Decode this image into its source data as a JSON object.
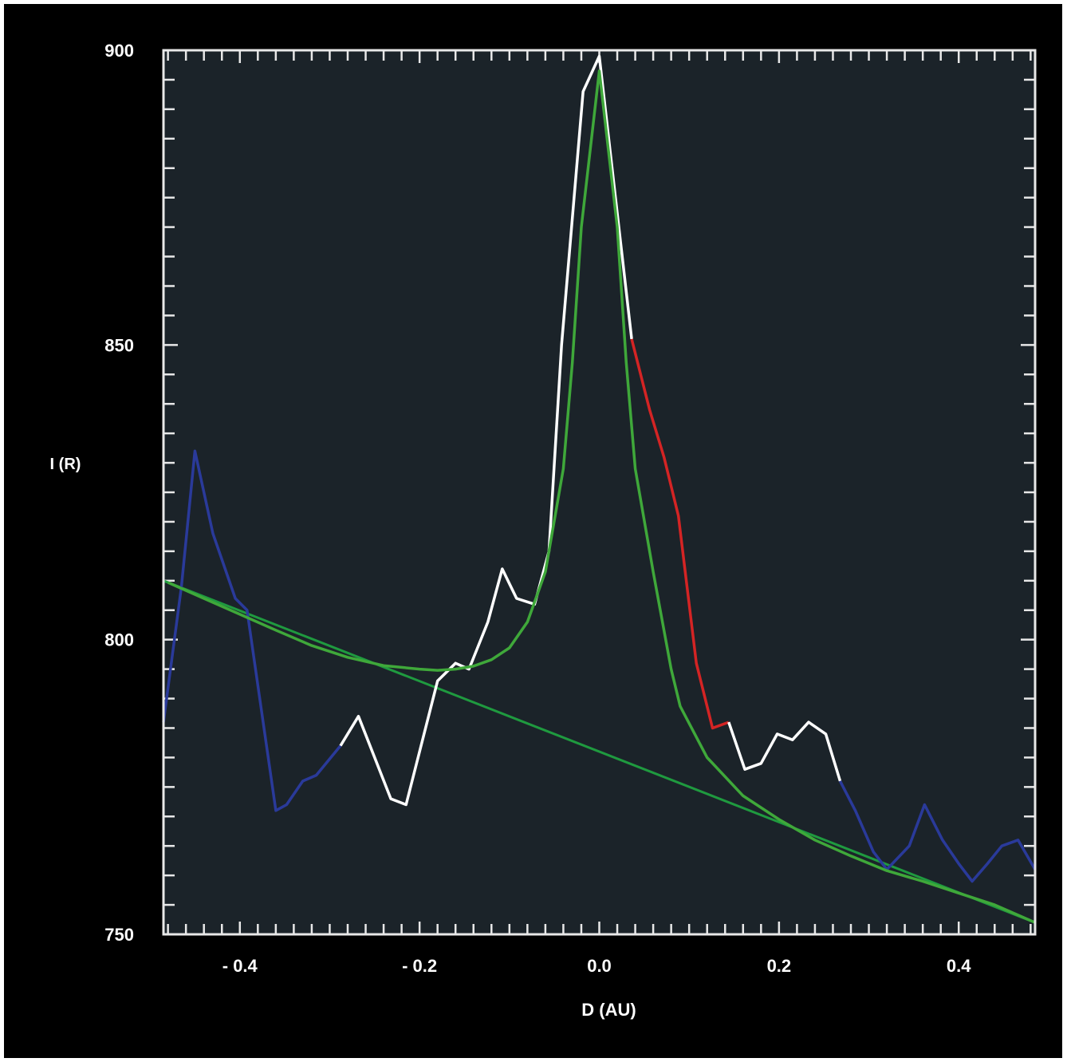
{
  "chart_data": {
    "type": "line",
    "title": "",
    "xlabel": "D (AU)",
    "ylabel": "I (R)",
    "xlim": [
      -0.485,
      0.485
    ],
    "ylim": [
      750,
      900
    ],
    "x_ticks": [
      -0.4,
      -0.2,
      0.0,
      0.2,
      0.4
    ],
    "x_tick_labels": [
      "- 0.4",
      "- 0.2",
      "0.0",
      "0.2",
      "0.4"
    ],
    "y_ticks": [
      750,
      800,
      850,
      900
    ],
    "y_tick_labels": [
      "750",
      "800",
      "850",
      "900"
    ],
    "grid": false,
    "colors": {
      "background": "#1b2329",
      "frame": "#000000",
      "axes": "#e8e8e8",
      "observed": "#ffffff",
      "excluded": "#2a3a9a",
      "excess": "#d42424",
      "fit": "#3fa83a",
      "baseline": "#1f9a3f"
    },
    "observed": {
      "x": [
        -0.485,
        -0.465,
        -0.45,
        -0.43,
        -0.405,
        -0.392,
        -0.36,
        -0.348,
        -0.33,
        -0.315,
        -0.288,
        -0.268,
        -0.232,
        -0.215,
        -0.18,
        -0.16,
        -0.145,
        -0.124,
        -0.108,
        -0.092,
        -0.072,
        -0.056,
        -0.042,
        -0.018,
        0.0,
        0.018,
        0.036,
        0.056,
        0.072,
        0.088,
        0.108,
        0.126,
        0.144,
        0.162,
        0.18,
        0.198,
        0.215,
        0.233,
        0.252,
        0.268,
        0.285,
        0.305,
        0.32,
        0.345,
        0.362,
        0.382,
        0.4,
        0.415,
        0.432,
        0.448,
        0.466,
        0.485
      ],
      "y": [
        786,
        809,
        832,
        818,
        807,
        805,
        771,
        772,
        776,
        777,
        782,
        787,
        773,
        772,
        793,
        796,
        795,
        803,
        812,
        807,
        806,
        815,
        850,
        893,
        899,
        875,
        851,
        839,
        831,
        821,
        796,
        785,
        786,
        778,
        779,
        784,
        783,
        786,
        784,
        776,
        771,
        764,
        761,
        765,
        772,
        766,
        762,
        759,
        762,
        765,
        766,
        761
      ],
      "segments": [
        {
          "from": -0.485,
          "to": -0.465,
          "status": "excluded"
        },
        {
          "from": -0.465,
          "to": -0.288,
          "status": "excluded"
        },
        {
          "from": -0.288,
          "to": 0.036,
          "status": "fitted"
        },
        {
          "from": 0.036,
          "to": 0.144,
          "status": "excess"
        },
        {
          "from": 0.144,
          "to": 0.268,
          "status": "fitted"
        },
        {
          "from": 0.268,
          "to": 0.485,
          "status": "excluded"
        }
      ]
    },
    "fit_curve": {
      "x": [
        -0.48,
        -0.44,
        -0.4,
        -0.36,
        -0.32,
        -0.28,
        -0.24,
        -0.2,
        -0.18,
        -0.16,
        -0.14,
        -0.12,
        -0.1,
        -0.08,
        -0.06,
        -0.04,
        -0.03,
        -0.02,
        0.0,
        0.02,
        0.03,
        0.04,
        0.06,
        0.08,
        0.09,
        0.12,
        0.16,
        0.2,
        0.24,
        0.28,
        0.32,
        0.36,
        0.4,
        0.44,
        0.485
      ],
      "y": [
        809.7,
        807.0,
        804.3,
        801.6,
        799.0,
        797.0,
        795.6,
        795.0,
        794.8,
        795.0,
        795.5,
        796.6,
        798.6,
        803.0,
        811.5,
        829.0,
        847.0,
        870.0,
        896.5,
        870.0,
        847.0,
        829.0,
        811.5,
        795.0,
        788.7,
        780.0,
        773.5,
        769.5,
        766.0,
        763.3,
        760.8,
        759.0,
        757.0,
        755.0,
        752.0
      ]
    },
    "baseline": {
      "x": [
        -0.485,
        0.485
      ],
      "y": [
        810.0,
        752.0
      ]
    }
  }
}
